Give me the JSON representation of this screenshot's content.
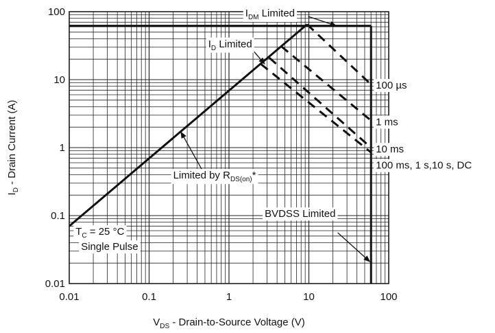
{
  "chart_data": {
    "type": "line",
    "x_scale": "log",
    "y_scale": "log",
    "xlim": [
      0.01,
      100
    ],
    "ylim": [
      0.01,
      100
    ],
    "grid": true,
    "x_ticks": [
      {
        "value": 0.01,
        "label": "0.01"
      },
      {
        "value": 0.1,
        "label": "0.1"
      },
      {
        "value": 1,
        "label": "1"
      },
      {
        "value": 10,
        "label": "10"
      },
      {
        "value": 100,
        "label": "100"
      }
    ],
    "y_ticks": [
      {
        "value": 0.01,
        "label": "0.01"
      },
      {
        "value": 0.1,
        "label": "0.1"
      },
      {
        "value": 1,
        "label": "1"
      },
      {
        "value": 10,
        "label": "10"
      },
      {
        "value": 100,
        "label": "100"
      }
    ],
    "xlabel": {
      "main": "V",
      "sub": "DS",
      "rest": " - Drain-to-Source Voltage (V)"
    },
    "ylabel": {
      "main": "I",
      "sub": "D",
      "rest": " - Drain Current (A)"
    },
    "series": [
      {
        "id": "rds-on-limit",
        "style": "solid",
        "points": [
          [
            0.01,
            0.07
          ],
          [
            9.5,
            65
          ]
        ]
      },
      {
        "id": "idm-limit",
        "style": "solid",
        "points": [
          [
            0.01,
            62
          ],
          [
            60,
            62
          ]
        ]
      },
      {
        "id": "bvdss-limit",
        "style": "solid",
        "points": [
          [
            60,
            62
          ],
          [
            60,
            0.01
          ]
        ]
      },
      {
        "id": "curve-100us",
        "style": "dashed",
        "label": "100 µs",
        "points": [
          [
            9.5,
            65
          ],
          [
            60,
            8.5
          ]
        ]
      },
      {
        "id": "curve-1ms",
        "style": "dashed",
        "label": "1 ms",
        "points": [
          [
            4.5,
            31
          ],
          [
            60,
            2.5
          ]
        ]
      },
      {
        "id": "curve-10ms",
        "style": "dashed",
        "label": "10 ms",
        "points": [
          [
            3.2,
            21
          ],
          [
            60,
            1.0
          ]
        ]
      },
      {
        "id": "curve-100ms-dc",
        "style": "dashed",
        "label": "100 ms, 1 s,10 s, DC",
        "points": [
          [
            2.5,
            17
          ],
          [
            60,
            0.85
          ]
        ]
      }
    ],
    "annotations": [
      {
        "id": "idm",
        "main": "I",
        "sub": "DM",
        "rest": " Limited",
        "text_at": [
          1.6,
          85
        ],
        "arrow_from": [
          9.8,
          85
        ],
        "arrow_to": [
          22,
          62
        ]
      },
      {
        "id": "id",
        "main": "I",
        "sub": "D",
        "rest": " Limited",
        "text_at": [
          0.55,
          30
        ],
        "arrow_from": [
          2.05,
          26
        ],
        "arrow_to": [
          2.8,
          17
        ]
      },
      {
        "id": "rds",
        "main": "Limited by R",
        "sub": "DS(on)",
        "rest": "*",
        "text_at": [
          0.2,
          0.35
        ],
        "arrow_from": [
          0.47,
          0.45
        ],
        "arrow_to": [
          0.25,
          1.7
        ]
      },
      {
        "id": "bvdss",
        "main": "BVDSS Limited",
        "sub": "",
        "rest": "",
        "text_at": [
          2.8,
          0.095
        ],
        "arrow_from": [
          23,
          0.056
        ],
        "arrow_to": [
          58,
          0.021
        ]
      }
    ],
    "conditions": {
      "line1_main": "T",
      "line1_sub": "C",
      "line1_rest": " = 25 °C",
      "line2": "Single Pulse",
      "text_at": [
        0.012,
        0.052
      ]
    },
    "series_labels": [
      {
        "series": "curve-100us",
        "label": "100 µs",
        "y": 8.3
      },
      {
        "series": "curve-1ms",
        "label": "1 ms",
        "y": 2.4
      },
      {
        "series": "curve-10ms",
        "label": "10 ms",
        "y": 0.95
      },
      {
        "series": "curve-100ms-dc",
        "label": "100 ms, 1 s,10 s, DC",
        "y": 0.55
      }
    ]
  }
}
